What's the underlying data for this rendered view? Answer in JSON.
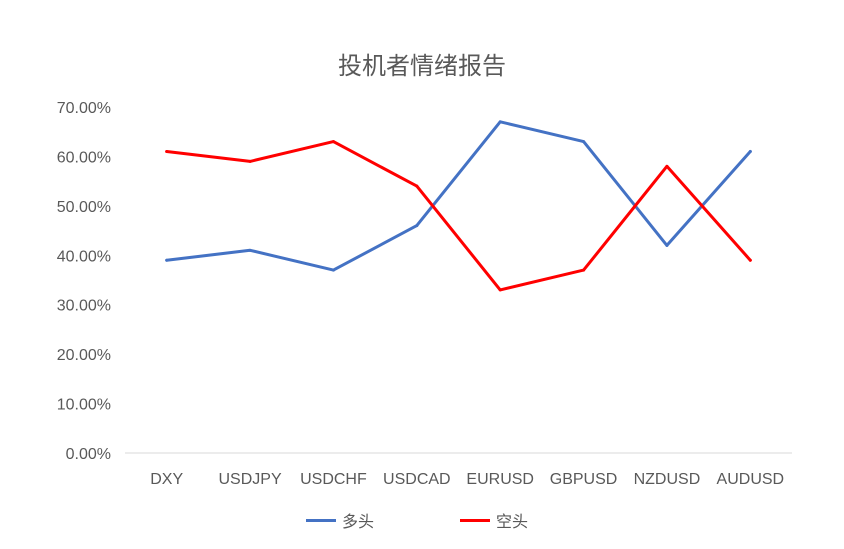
{
  "chart_data": {
    "type": "line",
    "title": "投机者情绪报告",
    "categories": [
      "DXY",
      "USDJPY",
      "USDCHF",
      "USDCAD",
      "EURUSD",
      "GBPUSD",
      "NZDUSD",
      "AUDUSD"
    ],
    "series": [
      {
        "name": "多头",
        "color": "#4472C4",
        "values": [
          39,
          41,
          37,
          46,
          67,
          63,
          42,
          61
        ]
      },
      {
        "name": "空头",
        "color": "#FF0000",
        "values": [
          61,
          59,
          63,
          54,
          33,
          37,
          58,
          39
        ]
      }
    ],
    "yticks": [
      "0.00%",
      "10.00%",
      "20.00%",
      "30.00%",
      "40.00%",
      "50.00%",
      "60.00%",
      "70.00%"
    ],
    "ylim": [
      0,
      70
    ],
    "legend_position": "bottom",
    "grid": false
  }
}
